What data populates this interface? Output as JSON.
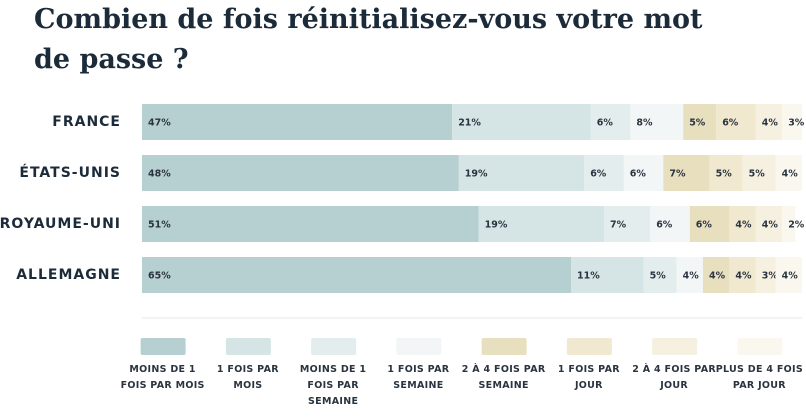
{
  "chart_data": {
    "type": "stacked-bar-horizontal",
    "title": "Combien de fois réinitialisez-vous votre mot de passe ?",
    "categories": [
      "FRANCE",
      "ÉTATS-UNIS",
      "ROYAUME-UNI",
      "ALLEMAGNE"
    ],
    "xlim": [
      0,
      100
    ],
    "series": [
      {
        "name": "MOINS DE 1 FOIS PAR MOIS",
        "color": "#b6cfd0",
        "values": [
          47,
          48,
          51,
          65
        ],
        "value_labels": [
          "47%",
          "48%",
          "51%",
          "65%"
        ]
      },
      {
        "name": "1 FOIS PAR MOIS",
        "color": "#d5e4e4",
        "values": [
          21,
          19,
          19,
          11
        ],
        "value_labels": [
          "21%",
          "19%",
          "19%",
          "11%"
        ]
      },
      {
        "name": "MOINS DE 1 FOIS PAR SEMAINE",
        "color": "#e3eded",
        "values": [
          6,
          6,
          7,
          5
        ],
        "value_labels": [
          "6%",
          "6%",
          "7%",
          "5%"
        ]
      },
      {
        "name": "1 FOIS PAR SEMAINE",
        "color": "#f2f6f6",
        "values": [
          8,
          6,
          6,
          4
        ],
        "value_labels": [
          "8%",
          "6%",
          "6%",
          "4%"
        ]
      },
      {
        "name": "2 À 4 FOIS PAR SEMAINE",
        "color": "#e8dfbf",
        "values": [
          5,
          7,
          6,
          4
        ],
        "value_labels": [
          "5%",
          "7%",
          "6%",
          "4%"
        ]
      },
      {
        "name": "1 FOIS PAR JOUR",
        "color": "#f0e9cf",
        "values": [
          6,
          5,
          4,
          4
        ],
        "value_labels": [
          "6%",
          "5%",
          "4%",
          "4%"
        ]
      },
      {
        "name": "2 À 4 FOIS PAR JOUR",
        "color": "#f5f0df",
        "values": [
          4,
          5,
          4,
          3
        ],
        "value_labels": [
          "4%",
          "5%",
          "4%",
          "3%"
        ]
      },
      {
        "name": "PLUS DE 4 FOIS PAR JOUR",
        "color": "#f9f7ee",
        "values": [
          3,
          4,
          2,
          4
        ],
        "value_labels": [
          "3%",
          "4%",
          "2%",
          "4%"
        ]
      }
    ]
  }
}
